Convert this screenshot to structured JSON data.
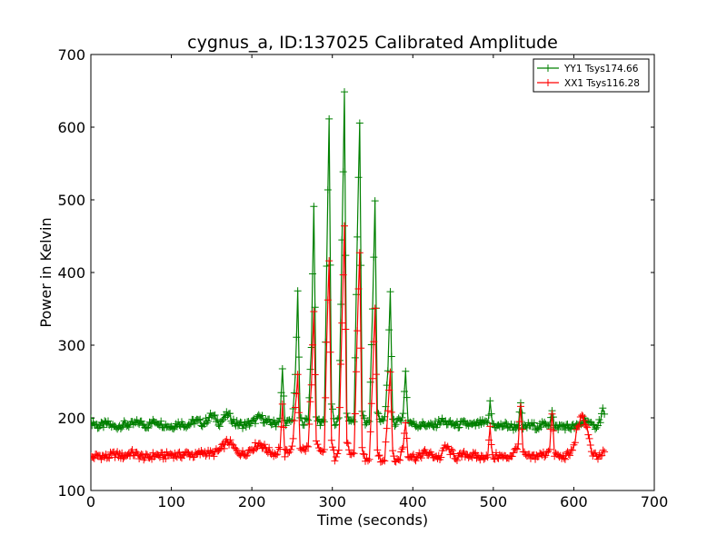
{
  "chart_data": {
    "type": "line",
    "title": "cygnus_a, ID:137025 Calibrated Amplitude",
    "xlabel": "Time (seconds)",
    "ylabel": "Power in Kelvin",
    "xlim": [
      0,
      700
    ],
    "ylim": [
      100,
      700
    ],
    "xticks": [
      0,
      100,
      200,
      300,
      400,
      500,
      600,
      700
    ],
    "yticks": [
      100,
      200,
      300,
      400,
      500,
      600,
      700
    ],
    "xtick_labels": [
      "0",
      "100",
      "200",
      "300",
      "400",
      "500",
      "600",
      "700"
    ],
    "ytick_labels": [
      "100",
      "200",
      "300",
      "400",
      "500",
      "600",
      "700"
    ],
    "grid": false,
    "legend_position": "top-right",
    "marker": "plus",
    "series": [
      {
        "name": "YY1 Tsys174.66",
        "color": "#008000",
        "baseline": 192,
        "x": [
          0,
          10,
          20,
          30,
          40,
          50,
          60,
          70,
          80,
          90,
          100,
          110,
          120,
          130,
          140,
          150,
          160,
          170,
          180,
          190,
          200,
          210,
          220,
          230,
          235,
          238,
          241,
          245,
          250,
          254,
          257,
          260,
          265,
          270,
          274,
          277,
          280,
          285,
          290,
          293,
          296,
          299,
          303,
          308,
          312,
          315,
          318,
          322,
          327,
          331,
          334,
          337,
          341,
          346,
          350,
          353,
          356,
          360,
          365,
          369,
          372,
          375,
          379,
          384,
          388,
          391,
          394,
          398,
          405,
          415,
          425,
          435,
          445,
          455,
          465,
          475,
          485,
          493,
          496,
          499,
          505,
          515,
          525,
          531,
          534,
          537,
          545,
          555,
          565,
          570,
          573,
          576,
          585,
          595,
          605,
          612,
          615,
          620,
          625,
          630,
          633,
          636,
          638
        ],
        "y": [
          195,
          188,
          192,
          187,
          191,
          190,
          194,
          189,
          196,
          191,
          188,
          193,
          190,
          196,
          192,
          204,
          193,
          205,
          192,
          190,
          193,
          201,
          194,
          192,
          200,
          265,
          195,
          193,
          196,
          255,
          370,
          198,
          194,
          197,
          300,
          495,
          200,
          193,
          198,
          410,
          610,
          215,
          192,
          197,
          440,
          645,
          205,
          194,
          199,
          450,
          605,
          210,
          193,
          196,
          350,
          500,
          205,
          194,
          200,
          260,
          375,
          200,
          190,
          198,
          205,
          265,
          196,
          193,
          190,
          191,
          188,
          196,
          192,
          190,
          192,
          189,
          193,
          191,
          220,
          192,
          188,
          190,
          187,
          190,
          218,
          186,
          190,
          188,
          191,
          193,
          213,
          186,
          189,
          187,
          188,
          195,
          200,
          190,
          187,
          192,
          198,
          212,
          203
        ]
      },
      {
        "name": "XX1 Tsys116.28",
        "color": "#ff0000",
        "baseline": 148,
        "x": [
          0,
          10,
          20,
          30,
          40,
          50,
          60,
          70,
          80,
          90,
          100,
          110,
          120,
          130,
          140,
          150,
          160,
          170,
          175,
          180,
          190,
          200,
          210,
          220,
          230,
          235,
          238,
          241,
          245,
          250,
          254,
          257,
          260,
          265,
          270,
          274,
          277,
          280,
          285,
          290,
          293,
          296,
          299,
          303,
          308,
          312,
          315,
          318,
          322,
          327,
          331,
          334,
          337,
          341,
          346,
          350,
          353,
          356,
          360,
          365,
          369,
          372,
          375,
          379,
          384,
          388,
          391,
          394,
          398,
          405,
          415,
          425,
          435,
          440,
          445,
          455,
          465,
          475,
          485,
          493,
          496,
          499,
          505,
          515,
          525,
          531,
          534,
          537,
          545,
          555,
          565,
          570,
          573,
          576,
          585,
          595,
          600,
          605,
          610,
          614,
          618,
          622,
          630,
          638
        ],
        "y": [
          145,
          148,
          146,
          150,
          147,
          152,
          148,
          145,
          149,
          147,
          150,
          148,
          151,
          148,
          153,
          150,
          155,
          168,
          163,
          155,
          150,
          158,
          165,
          155,
          150,
          160,
          215,
          150,
          155,
          158,
          210,
          260,
          160,
          155,
          160,
          250,
          345,
          165,
          152,
          155,
          300,
          420,
          165,
          145,
          160,
          330,
          465,
          170,
          145,
          150,
          320,
          430,
          160,
          140,
          145,
          250,
          355,
          155,
          142,
          145,
          210,
          268,
          150,
          140,
          145,
          162,
          195,
          150,
          148,
          145,
          152,
          148,
          145,
          162,
          155,
          145,
          150,
          148,
          145,
          150,
          185,
          145,
          148,
          145,
          150,
          165,
          215,
          150,
          145,
          148,
          150,
          160,
          205,
          150,
          145,
          150,
          160,
          190,
          200,
          195,
          180,
          150,
          145,
          152
        ]
      }
    ]
  }
}
